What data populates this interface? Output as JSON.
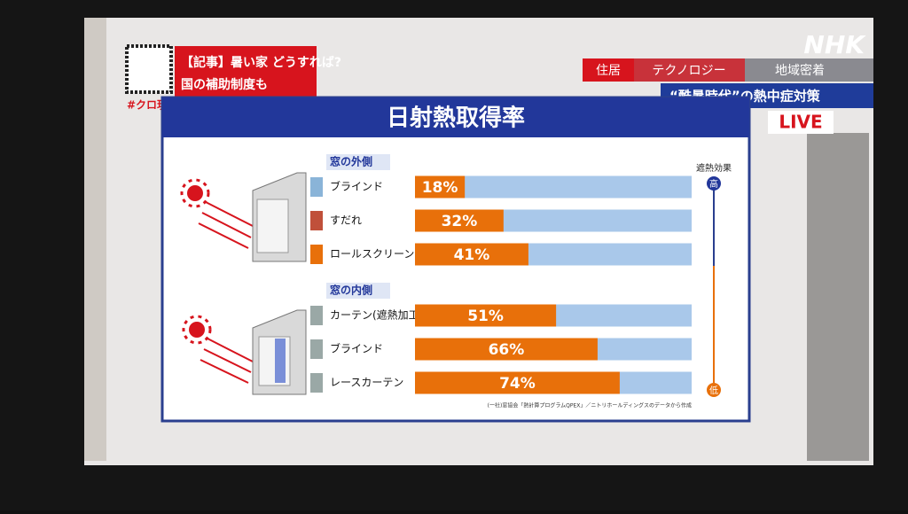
{
  "overlay": {
    "article": "【記事】暑い家 どうすれば?",
    "article_sub": "国の補助制度も",
    "hashtag": "#クロ現",
    "brand": "NHK",
    "tags": [
      "住居",
      "テクノロジー",
      "地域密着"
    ],
    "topic": "“酷暑時代”の熱中症対策",
    "live": "LIVE"
  },
  "chart_data": {
    "type": "bar",
    "title": "日射熱取得率",
    "xlim": [
      0,
      100
    ],
    "bar_color": "#e8700a",
    "track_color": "#a9c8ea",
    "groups": [
      {
        "name": "窓の外側",
        "categories": [
          "ブラインド",
          "すだれ",
          "ロールスクリーン"
        ],
        "values": [
          18,
          32,
          41
        ],
        "value_labels": [
          "18%",
          "32%",
          "41%"
        ]
      },
      {
        "name": "窓の内側",
        "categories": [
          "カーテン(遮熱加工)",
          "ブラインド",
          "レースカーテン"
        ],
        "values": [
          51,
          66,
          74
        ],
        "value_labels": [
          "51%",
          "66%",
          "74%"
        ]
      }
    ],
    "scale_label": "遮熱効果",
    "scale_high": "高",
    "scale_low": "低",
    "source": "(一社)窓協会「熱計算プログラムQPEX」／ニトリホールディングスのデータから作成"
  }
}
